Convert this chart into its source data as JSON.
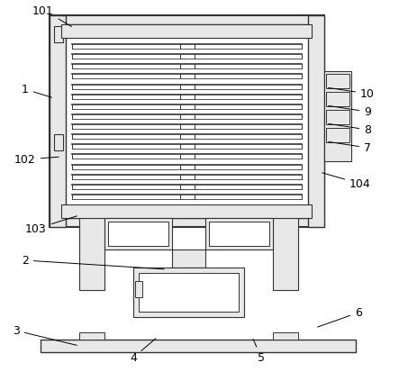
{
  "background_color": "#ffffff",
  "line_color": "#333333",
  "fill_light": "#e8e8e8",
  "fill_white": "#ffffff",
  "font_size": 9
}
